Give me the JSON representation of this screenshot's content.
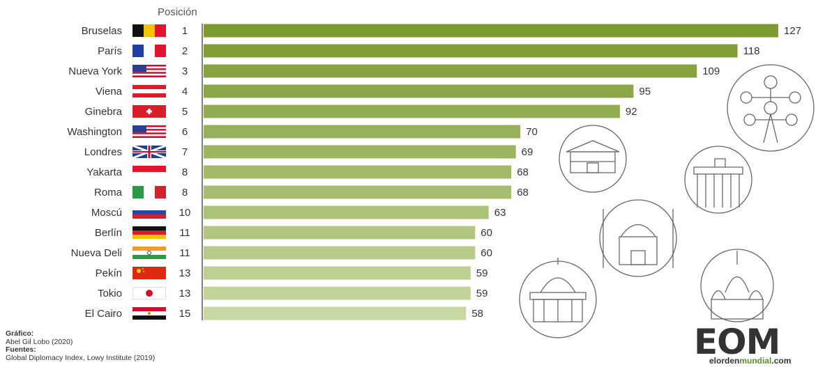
{
  "header": {
    "position_label": "Posición"
  },
  "chart_data": {
    "type": "bar",
    "orientation": "horizontal",
    "categories": [
      "Bruselas",
      "París",
      "Nueva York",
      "Viena",
      "Ginebra",
      "Washington",
      "Londres",
      "Yakarta",
      "Roma",
      "Moscú",
      "Berlín",
      "Nueva Deli",
      "Pekín",
      "Tokio",
      "El Cairo"
    ],
    "positions": [
      "1",
      "2",
      "3",
      "4",
      "5",
      "6",
      "7",
      "8",
      "8",
      "10",
      "11",
      "11",
      "13",
      "13",
      "15"
    ],
    "values": [
      127,
      118,
      109,
      95,
      92,
      70,
      69,
      68,
      68,
      63,
      60,
      60,
      59,
      59,
      58
    ],
    "flags": [
      "be-flag",
      "fr-flag",
      "us-flag",
      "at-flag",
      "ch-flag",
      "us-flag",
      "uk-flag",
      "id-flag",
      "it-flag",
      "ru-flag",
      "de-flag",
      "in-flag",
      "cn-flag",
      "jp-flag",
      "eg-flag"
    ],
    "xlim": [
      0,
      127
    ],
    "colors": {
      "dark": "#7b9a30",
      "light": "#c8d8a2"
    }
  },
  "credits": {
    "graphic_label": "Gráfico:",
    "graphic_author": "Abel Gil Lobo (2020)",
    "sources_label": "Fuentes:",
    "sources": "Global Diplomacy Index, Lowy Institute (2019)"
  },
  "logo": {
    "mark": "EOM",
    "site_prefix": "elorden",
    "site_accent": "mundial",
    "site_suffix": ".com"
  },
  "decorations": [
    "atomium-icon",
    "forbidden-city-icon",
    "brandenburg-gate-icon",
    "mosque-icon",
    "capitol-icon",
    "kremlin-icon"
  ]
}
